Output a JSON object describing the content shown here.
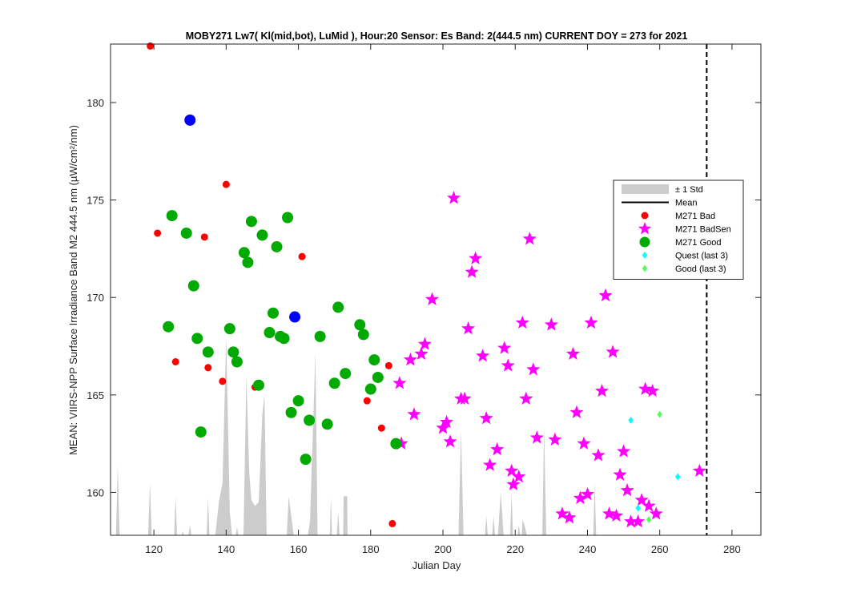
{
  "chart_data": {
    "type": "scatter",
    "title": "MOBY271   Lw7( Kl(mid,bot), LuMid ),   Hour:20 Sensor: Es Band: 2(444.5 nm)   CURRENT DOY = 273 for 2021",
    "xlabel": "Julian Day",
    "ylabel": "MEAN: VIIRS-NPP Surface Irradiance Band M2 444.5 nm (µW/cm²/nm)",
    "xlim": [
      108,
      288
    ],
    "ylim": [
      157.8,
      183
    ],
    "xticks": [
      120,
      140,
      160,
      180,
      200,
      220,
      240,
      260,
      280
    ],
    "yticks": [
      160,
      165,
      170,
      175,
      180
    ],
    "current_doy": 273,
    "grid": false,
    "legend_position": "right",
    "legend": [
      {
        "label": "± 1 Std",
        "marker": "area",
        "color": "#cccccc"
      },
      {
        "label": "Mean",
        "marker": "line",
        "color": "#000000"
      },
      {
        "label": "M271 Bad",
        "marker": "dot",
        "color": "#ff0000"
      },
      {
        "label": "M271 BadSen",
        "marker": "star",
        "color": "#ff00ff"
      },
      {
        "label": "M271 Good",
        "marker": "circle",
        "color": "#00aa00"
      },
      {
        "label": "Quest (last 3)",
        "marker": "diamond",
        "color": "#00ffff"
      },
      {
        "label": "Good (last 3)",
        "marker": "diamond",
        "color": "#55ff55"
      }
    ],
    "std_area": [
      [
        109.5,
        157.8
      ],
      [
        110,
        161.4
      ],
      [
        110.5,
        157.8
      ],
      [
        118.4,
        157.8
      ],
      [
        118.9,
        160.5
      ],
      [
        119.4,
        157.8
      ],
      [
        125.6,
        157.8
      ],
      [
        126,
        159.8
      ],
      [
        126.4,
        157.8
      ],
      [
        127.7,
        157.8
      ],
      [
        128,
        158.0
      ],
      [
        128.3,
        157.8
      ],
      [
        129.6,
        157.8
      ],
      [
        130,
        158.3
      ],
      [
        130.4,
        157.8
      ],
      [
        134.6,
        157.8
      ],
      [
        135,
        159.7
      ],
      [
        135.4,
        157.8
      ],
      [
        137,
        157.8
      ],
      [
        138,
        159.5
      ],
      [
        139,
        160.5
      ],
      [
        140,
        168
      ],
      [
        141,
        159
      ],
      [
        141.6,
        157.8
      ],
      [
        142.6,
        157.8
      ],
      [
        143,
        158.2
      ],
      [
        143.4,
        157.8
      ],
      [
        144.8,
        157.8
      ],
      [
        145.6,
        166
      ],
      [
        146.4,
        161
      ],
      [
        147,
        159.6
      ],
      [
        148,
        159.3
      ],
      [
        149,
        159.5
      ],
      [
        150,
        164
      ],
      [
        150.6,
        165
      ],
      [
        151.2,
        157.8
      ],
      [
        156.8,
        157.8
      ],
      [
        157.3,
        159.8
      ],
      [
        158,
        158.8
      ],
      [
        158.7,
        157.8
      ],
      [
        162.6,
        157.8
      ],
      [
        163.2,
        158.5
      ],
      [
        164,
        163
      ],
      [
        164.7,
        167.2
      ],
      [
        165.3,
        157.8
      ],
      [
        168.7,
        157.8
      ],
      [
        169,
        159.8
      ],
      [
        169.3,
        157.8
      ],
      [
        170.6,
        157.8
      ],
      [
        171,
        159.0
      ],
      [
        171.4,
        157.8
      ],
      [
        172.4,
        157.8
      ],
      [
        172.5,
        159.8
      ],
      [
        173.5,
        159.8
      ],
      [
        173.6,
        157.8
      ],
      [
        204.3,
        157.8
      ],
      [
        205,
        163.2
      ],
      [
        205.7,
        157.8
      ],
      [
        211.6,
        157.8
      ],
      [
        212,
        158.8
      ],
      [
        212.4,
        157.8
      ],
      [
        213.6,
        157.8
      ],
      [
        214,
        158.8
      ],
      [
        214.4,
        157.8
      ],
      [
        215.2,
        157.8
      ],
      [
        216,
        160.0
      ],
      [
        216.8,
        157.8
      ],
      [
        218.6,
        157.8
      ],
      [
        219,
        160.0
      ],
      [
        219.4,
        157.8
      ],
      [
        220.6,
        157.8
      ],
      [
        221,
        158.3
      ],
      [
        221.4,
        157.8
      ],
      [
        221.8,
        157.8
      ],
      [
        222,
        158.6
      ],
      [
        222.6,
        158.3
      ],
      [
        223.2,
        157.8
      ],
      [
        227.5,
        157.8
      ],
      [
        228,
        163.4
      ],
      [
        228.6,
        157.8
      ],
      [
        241.6,
        157.8
      ],
      [
        242,
        160.5
      ],
      [
        242.4,
        157.8
      ]
    ],
    "series": [
      {
        "name": "M271 Bad",
        "marker": "dot",
        "color": "#ff0000",
        "points": [
          [
            119,
            182.9
          ],
          [
            121,
            173.3
          ],
          [
            126,
            166.7
          ],
          [
            134,
            173.1
          ],
          [
            135,
            166.4
          ],
          [
            139,
            165.7
          ],
          [
            140,
            175.8
          ],
          [
            148,
            165.4
          ],
          [
            161,
            172.1
          ],
          [
            179,
            164.7
          ],
          [
            183,
            163.3
          ],
          [
            185,
            166.5
          ],
          [
            186,
            158.4
          ]
        ]
      },
      {
        "name": "M271 BadSen",
        "marker": "star",
        "color": "#ff00ff",
        "points": [
          [
            188,
            165.6
          ],
          [
            188.5,
            162.5
          ],
          [
            191,
            166.8
          ],
          [
            192,
            164.0
          ],
          [
            194,
            167.1
          ],
          [
            195,
            167.6
          ],
          [
            197,
            169.9
          ],
          [
            200,
            163.3
          ],
          [
            201,
            163.6
          ],
          [
            202,
            162.6
          ],
          [
            203,
            175.1
          ],
          [
            205,
            164.8
          ],
          [
            206,
            164.8
          ],
          [
            207,
            168.4
          ],
          [
            208,
            171.3
          ],
          [
            209,
            172.0
          ],
          [
            211,
            167.0
          ],
          [
            212,
            163.8
          ],
          [
            213,
            161.4
          ],
          [
            215,
            162.2
          ],
          [
            217,
            167.4
          ],
          [
            218,
            166.5
          ],
          [
            219,
            161.1
          ],
          [
            219.5,
            160.4
          ],
          [
            221,
            160.8
          ],
          [
            222,
            168.7
          ],
          [
            223,
            164.8
          ],
          [
            224,
            173.0
          ],
          [
            225,
            166.3
          ],
          [
            226,
            162.8
          ],
          [
            230,
            168.6
          ],
          [
            231,
            162.7
          ],
          [
            233,
            158.9
          ],
          [
            235,
            158.7
          ],
          [
            236,
            167.1
          ],
          [
            237,
            164.1
          ],
          [
            238,
            159.7
          ],
          [
            239,
            162.5
          ],
          [
            240,
            159.9
          ],
          [
            241,
            168.7
          ],
          [
            243,
            161.9
          ],
          [
            244,
            165.2
          ],
          [
            245,
            170.1
          ],
          [
            246,
            158.9
          ],
          [
            247,
            167.2
          ],
          [
            248,
            158.8
          ],
          [
            249,
            160.9
          ],
          [
            250,
            162.1
          ],
          [
            251,
            160.1
          ],
          [
            252,
            158.5
          ],
          [
            254,
            158.5
          ],
          [
            255,
            159.6
          ],
          [
            256,
            165.3
          ],
          [
            257,
            159.3
          ],
          [
            258,
            165.2
          ],
          [
            259,
            158.9
          ],
          [
            271,
            161.1
          ]
        ]
      },
      {
        "name": "M271 Good",
        "marker": "circle",
        "color": "#00aa00",
        "points": [
          [
            124,
            168.5
          ],
          [
            125,
            174.2
          ],
          [
            129,
            173.3
          ],
          [
            131,
            170.6
          ],
          [
            132,
            167.9
          ],
          [
            133,
            163.1
          ],
          [
            135,
            167.2
          ],
          [
            141,
            168.4
          ],
          [
            142,
            167.2
          ],
          [
            143,
            166.7
          ],
          [
            145,
            172.3
          ],
          [
            146,
            171.8
          ],
          [
            147,
            173.9
          ],
          [
            149,
            165.5
          ],
          [
            150,
            173.2
          ],
          [
            152,
            168.2
          ],
          [
            153,
            169.2
          ],
          [
            154,
            172.6
          ],
          [
            155,
            168.0
          ],
          [
            156,
            167.9
          ],
          [
            157,
            174.1
          ],
          [
            158,
            164.1
          ],
          [
            160,
            164.7
          ],
          [
            162,
            161.7
          ],
          [
            163,
            163.7
          ],
          [
            166,
            168.0
          ],
          [
            168,
            163.5
          ],
          [
            170,
            165.6
          ],
          [
            171,
            169.5
          ],
          [
            173,
            166.1
          ],
          [
            177,
            168.6
          ],
          [
            178,
            168.1
          ],
          [
            180,
            165.3
          ],
          [
            181,
            166.8
          ],
          [
            182,
            165.9
          ],
          [
            187,
            162.5
          ]
        ]
      },
      {
        "name": "",
        "marker": "circle",
        "color": "#0000ff",
        "points": [
          [
            130,
            179.1
          ],
          [
            159,
            169.0
          ]
        ]
      },
      {
        "name": "Quest (last 3)",
        "marker": "diamond",
        "color": "#00ffff",
        "points": [
          [
            252,
            163.7
          ],
          [
            254,
            159.2
          ],
          [
            265,
            160.8
          ]
        ]
      },
      {
        "name": "Good (last 3)",
        "marker": "diamond",
        "color": "#55ff55",
        "points": [
          [
            257,
            158.6
          ],
          [
            260,
            164.0
          ]
        ]
      }
    ]
  }
}
